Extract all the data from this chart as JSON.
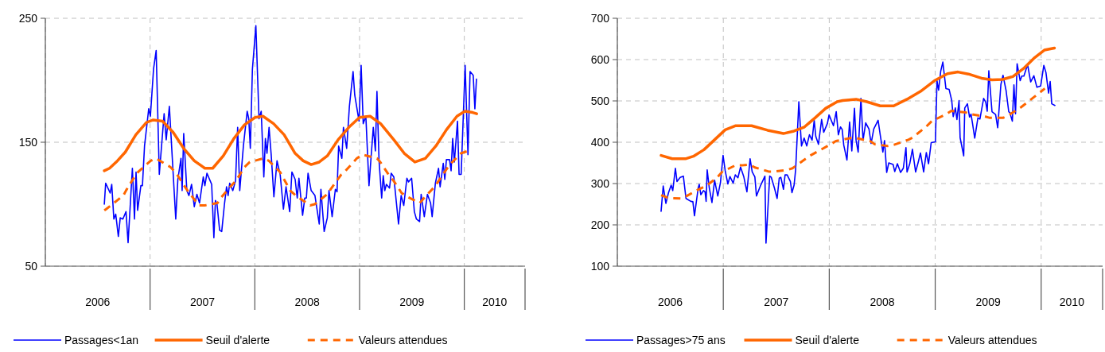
{
  "chart_data": [
    {
      "type": "line",
      "xlim": [
        2006,
        2010.58
      ],
      "ylim": [
        50,
        250
      ],
      "yticks": [
        50,
        150,
        250
      ],
      "xticks": [
        {
          "value": 2006,
          "label": null
        },
        {
          "value": 2006.5,
          "label": "2006"
        },
        {
          "value": 2007,
          "label": null
        },
        {
          "value": 2007.5,
          "label": "2007"
        },
        {
          "value": 2008,
          "label": null
        },
        {
          "value": 2008.5,
          "label": "2008"
        },
        {
          "value": 2009,
          "label": null
        },
        {
          "value": 2009.5,
          "label": "2009"
        },
        {
          "value": 2010,
          "label": null
        },
        {
          "value": 2010.29,
          "label": "2010"
        }
      ],
      "grid": true,
      "legend": "bottom",
      "series": [
        {
          "name": "Passages<1an",
          "color": "#0000ff",
          "line_style": "solid",
          "x": [
            2006.563,
            2006.576,
            2006.619,
            2006.634,
            2006.654,
            2006.672,
            2006.697,
            2006.715,
            2006.74,
            2006.77,
            2006.79,
            2006.831,
            2006.851,
            2006.866,
            2006.881,
            2006.912,
            2006.927,
            2006.947,
            2006.987,
            2007.003,
            2007.033,
            2007.058,
            2007.088,
            2007.134,
            2007.154,
            2007.184,
            2007.245,
            2007.265,
            2007.295,
            2007.306,
            2007.321,
            2007.351,
            2007.371,
            2007.396,
            2007.422,
            2007.447,
            2007.472,
            2007.508,
            2007.523,
            2007.543,
            2007.573,
            2007.588,
            2007.609,
            2007.624,
            2007.639,
            2007.664,
            2007.684,
            2007.71,
            2007.73,
            2007.745,
            2007.76,
            2007.79,
            2007.816,
            2007.836,
            2007.856,
            2007.891,
            2007.927,
            2007.942,
            2007.957,
            2007.977,
            2008.01,
            2008.04,
            2008.061,
            2008.086,
            2008.101,
            2008.116,
            2008.136,
            2008.157,
            2008.182,
            2008.212,
            2008.242,
            2008.273,
            2008.298,
            2008.333,
            2008.354,
            2008.385,
            2008.405,
            2008.421,
            2008.456,
            2008.477,
            2008.492,
            2008.508,
            2008.538,
            2008.574,
            2008.615,
            2008.631,
            2008.662,
            2008.692,
            2008.708,
            2008.738,
            2008.769,
            2008.785,
            2008.8,
            2008.831,
            2008.846,
            2008.877,
            2008.903,
            2008.938,
            2008.954,
            2008.995,
            2009.015,
            2009.035,
            2009.06,
            2009.09,
            2009.131,
            2009.151,
            2009.166,
            2009.186,
            2009.211,
            2009.226,
            2009.241,
            2009.256,
            2009.286,
            2009.302,
            2009.327,
            2009.372,
            2009.397,
            2009.422,
            2009.452,
            2009.467,
            2009.497,
            2009.523,
            2009.543,
            2009.573,
            2009.588,
            2009.618,
            2009.648,
            2009.678,
            2009.693,
            2009.724,
            2009.754,
            2009.769,
            2009.799,
            2009.814,
            2009.829,
            2009.859,
            2009.874,
            2009.889,
            2009.905,
            2009.935,
            2009.95,
            2009.97,
            2010.008,
            2010.035,
            2010.055,
            2010.085,
            2010.101,
            2010.116
          ],
          "values": [
            100,
            117,
            109,
            116,
            88,
            92,
            74,
            89,
            88,
            94,
            69,
            129,
            88,
            126,
            95,
            115,
            115,
            147,
            177,
            171,
            209,
            224,
            124,
            173,
            152,
            179,
            88,
            120,
            137,
            111,
            157,
            111,
            107,
            116,
            98,
            108,
            101,
            122,
            115,
            125,
            119,
            116,
            73,
            103,
            100,
            79,
            78,
            100,
            114,
            107,
            117,
            111,
            119,
            162,
            111,
            147,
            175,
            169,
            145,
            209,
            244,
            169,
            175,
            122,
            153,
            141,
            162,
            139,
            106,
            135,
            124,
            96,
            114,
            94,
            126,
            120,
            105,
            121,
            91,
            105,
            105,
            125,
            111,
            107,
            84,
            112,
            78,
            89,
            111,
            90,
            112,
            110,
            147,
            137,
            162,
            145,
            179,
            207,
            188,
            167,
            212,
            165,
            171,
            115,
            162,
            143,
            191,
            135,
            105,
            123,
            111,
            116,
            113,
            125,
            122,
            84,
            107,
            99,
            121,
            118,
            121,
            94,
            88,
            86,
            108,
            90,
            108,
            101,
            90,
            117,
            129,
            114,
            133,
            120,
            136,
            136,
            127,
            153,
            134,
            167,
            124,
            124,
            212,
            140,
            207,
            204,
            177,
            201
          ]
        },
        {
          "name": "Seuil d'alerte",
          "color": "#ff6600",
          "line_style": "solid",
          "x": [
            2006.563,
            2006.613,
            2006.688,
            2006.763,
            2006.864,
            2006.965,
            2007.03,
            2007.119,
            2007.22,
            2007.321,
            2007.422,
            2007.523,
            2007.598,
            2007.699,
            2007.8,
            2007.901,
            2008.003,
            2008.078,
            2008.179,
            2008.28,
            2008.385,
            2008.462,
            2008.538,
            2008.615,
            2008.692,
            2008.795,
            2008.897,
            2009.0,
            2009.101,
            2009.201,
            2009.327,
            2009.427,
            2009.528,
            2009.628,
            2009.729,
            2009.829,
            2009.93,
            2010.005,
            2010.08,
            2010.118
          ],
          "values": [
            127,
            129,
            135,
            142,
            156,
            166,
            168,
            167,
            158,
            145,
            135,
            129,
            129,
            139,
            153,
            164,
            170,
            171,
            165,
            156,
            141,
            135,
            132,
            134,
            139,
            152,
            162,
            170,
            171,
            165,
            152,
            141,
            134,
            137,
            147,
            160,
            171,
            175,
            174,
            173
          ]
        },
        {
          "name": "Valeurs attendues",
          "color": "#ff6600",
          "line_style": "dashed",
          "x": [
            2006.563,
            2006.58,
            2006.745,
            2006.77,
            2006.843,
            2006.886,
            2007.005,
            2007.055,
            2007.194,
            2007.25,
            2007.333,
            2007.366,
            2007.467,
            2007.523,
            2007.644,
            2007.674,
            2007.775,
            2007.821,
            2007.902,
            2007.952,
            2008.083,
            2008.134,
            2008.241,
            2008.273,
            2008.338,
            2008.392,
            2008.528,
            2008.572,
            2008.705,
            2008.723,
            2008.826,
            2008.867,
            2008.974,
            2009.03,
            2009.166,
            2009.198,
            2009.284,
            2009.324,
            2009.402,
            2009.457,
            2009.575,
            2009.615,
            2009.726,
            2009.756,
            2009.837,
            2009.874,
            2009.967,
            2010.035
          ],
          "values": [
            95,
            96,
            107,
            111,
            121,
            126,
            135,
            137,
            130,
            125,
            114,
            110,
            99,
            99,
            101,
            105,
            115,
            119,
            130,
            134,
            137,
            135,
            126,
            121,
            111,
            107,
            99,
            100,
            109,
            112,
            124,
            127,
            137,
            140,
            137,
            134,
            123,
            119,
            109,
            106,
            101,
            105,
            115,
            119,
            129,
            133,
            141,
            143
          ]
        }
      ]
    },
    {
      "type": "line",
      "xlim": [
        2006,
        2010.58
      ],
      "ylim": [
        100,
        700
      ],
      "yticks": [
        100,
        200,
        300,
        400,
        500,
        600,
        700
      ],
      "xticks": [
        {
          "value": 2006,
          "label": null
        },
        {
          "value": 2006.5,
          "label": "2006"
        },
        {
          "value": 2007,
          "label": null
        },
        {
          "value": 2007.5,
          "label": "2007"
        },
        {
          "value": 2008,
          "label": null
        },
        {
          "value": 2008.5,
          "label": "2008"
        },
        {
          "value": 2009,
          "label": null
        },
        {
          "value": 2009.5,
          "label": "2009"
        },
        {
          "value": 2010,
          "label": null
        },
        {
          "value": 2010.29,
          "label": "2010"
        }
      ],
      "grid": true,
      "legend": "bottom",
      "series": [
        {
          "name": "Passages>75 ans",
          "color": "#0000ff",
          "line_style": "solid",
          "x": [
            2006.413,
            2006.433,
            2006.458,
            2006.483,
            2006.508,
            2006.523,
            2006.548,
            2006.563,
            2006.593,
            2006.623,
            2006.648,
            2006.693,
            2006.713,
            2006.728,
            2006.763,
            2006.773,
            2006.788,
            2006.813,
            2006.828,
            2006.838,
            2006.848,
            2006.868,
            2006.893,
            2006.918,
            2006.928,
            2006.948,
            2006.973,
            2006.998,
            2007.018,
            2007.043,
            2007.063,
            2007.093,
            2007.113,
            2007.138,
            2007.163,
            2007.193,
            2007.223,
            2007.253,
            2007.273,
            2007.298,
            2007.313,
            2007.353,
            2007.393,
            2007.403,
            2007.438,
            2007.453,
            2007.483,
            2007.508,
            2007.528,
            2007.543,
            2007.568,
            2007.583,
            2007.603,
            2007.633,
            2007.648,
            2007.668,
            2007.683,
            2007.713,
            2007.738,
            2007.763,
            2007.788,
            2007.813,
            2007.838,
            2007.858,
            2007.873,
            2007.898,
            2007.928,
            2007.948,
            2007.983,
            2007.998,
            2008.04,
            2008.066,
            2008.086,
            2008.106,
            2008.122,
            2008.137,
            2008.167,
            2008.192,
            2008.213,
            2008.238,
            2008.253,
            2008.273,
            2008.299,
            2008.319,
            2008.344,
            2008.375,
            2008.395,
            2008.42,
            2008.461,
            2008.481,
            2008.506,
            2008.522,
            2008.542,
            2008.562,
            2008.603,
            2008.618,
            2008.643,
            2008.673,
            2008.699,
            2008.724,
            2008.734,
            2008.759,
            2008.785,
            2008.815,
            2008.841,
            2008.861,
            2008.891,
            2008.916,
            2008.937,
            2008.962,
            2009.002,
            2009.017,
            2009.032,
            2009.052,
            2009.072,
            2009.101,
            2009.131,
            2009.156,
            2009.17,
            2009.19,
            2009.205,
            2009.225,
            2009.235,
            2009.269,
            2009.279,
            2009.304,
            2009.324,
            2009.338,
            2009.353,
            2009.373,
            2009.403,
            2009.422,
            2009.457,
            2009.477,
            2009.491,
            2009.506,
            2009.536,
            2009.57,
            2009.59,
            2009.62,
            2009.64,
            2009.669,
            2009.694,
            2009.704,
            2009.728,
            2009.743,
            2009.758,
            2009.773,
            2009.802,
            2009.817,
            2009.837,
            2009.872,
            2009.901,
            2009.931,
            2009.96,
            2009.995,
            2010.025,
            2010.045,
            2010.07,
            2010.085,
            2010.1,
            2010.13
          ],
          "values": [
            233,
            294,
            252,
            278,
            296,
            283,
            337,
            305,
            315,
            318,
            264,
            257,
            256,
            222,
            289,
            298,
            273,
            283,
            280,
            257,
            333,
            289,
            254,
            308,
            295,
            270,
            302,
            368,
            331,
            299,
            317,
            301,
            321,
            314,
            340,
            317,
            280,
            360,
            328,
            316,
            270,
            296,
            318,
            156,
            318,
            315,
            289,
            264,
            313,
            315,
            286,
            321,
            321,
            305,
            278,
            296,
            334,
            498,
            391,
            410,
            391,
            418,
            405,
            453,
            414,
            395,
            455,
            424,
            446,
            466,
            440,
            474,
            418,
            437,
            431,
            393,
            357,
            449,
            379,
            482,
            405,
            376,
            506,
            405,
            447,
            432,
            397,
            432,
            453,
            418,
            376,
            404,
            327,
            350,
            346,
            329,
            348,
            327,
            337,
            387,
            328,
            347,
            383,
            328,
            353,
            374,
            328,
            375,
            348,
            399,
            401,
            549,
            526,
            572,
            594,
            530,
            528,
            501,
            462,
            483,
            455,
            501,
            411,
            367,
            483,
            493,
            461,
            468,
            444,
            410,
            459,
            456,
            506,
            497,
            475,
            573,
            474,
            467,
            435,
            540,
            562,
            525,
            474,
            472,
            451,
            539,
            469,
            590,
            549,
            560,
            560,
            588,
            546,
            561,
            533,
            536,
            586,
            569,
            519,
            547,
            493,
            489
          ]
        },
        {
          "name": "Seuil d'alerte",
          "color": "#ff6600",
          "line_style": "solid",
          "x": [
            2006.413,
            2006.518,
            2006.643,
            2006.718,
            2006.818,
            2006.918,
            2007.018,
            2007.118,
            2007.267,
            2007.418,
            2007.567,
            2007.667,
            2007.766,
            2007.866,
            2007.966,
            2008.075,
            2008.127,
            2008.253,
            2008.354,
            2008.481,
            2008.608,
            2008.734,
            2008.861,
            2008.993,
            2009.116,
            2009.215,
            2009.314,
            2009.437,
            2009.536,
            2009.635,
            2009.733,
            2009.832,
            2009.931,
            2010.03,
            2010.125
          ],
          "values": [
            368,
            360,
            360,
            366,
            382,
            406,
            430,
            440,
            440,
            429,
            421,
            427,
            437,
            459,
            482,
            498,
            501,
            504,
            498,
            488,
            488,
            504,
            523,
            549,
            566,
            570,
            565,
            555,
            551,
            552,
            559,
            578,
            603,
            623,
            628
          ]
        },
        {
          "name": "Valeurs attendues",
          "color": "#ff6600",
          "line_style": "dashed",
          "x": [
            2006.413,
            2006.48,
            2006.598,
            2006.655,
            2006.768,
            2006.838,
            2006.943,
            2006.988,
            2007.113,
            2007.173,
            2007.248,
            2007.298,
            2007.428,
            2007.478,
            2007.603,
            2007.653,
            2007.773,
            2007.823,
            2008.013,
            2008.063,
            2008.203,
            2008.253,
            2008.392,
            2008.43,
            2008.552,
            2008.613,
            2008.747,
            2008.785,
            2008.916,
            2008.967,
            2009.104,
            2009.153,
            2009.289,
            2009.333,
            2009.474,
            2009.516,
            2009.64,
            2009.684,
            2009.812,
            2009.862,
            2009.985,
            2010.035
          ],
          "values": [
            272,
            265,
            264,
            270,
            286,
            294,
            315,
            328,
            344,
            344,
            346,
            339,
            329,
            329,
            333,
            337,
            359,
            368,
            395,
            403,
            410,
            410,
            402,
            395,
            391,
            394,
            406,
            411,
            438,
            451,
            468,
            476,
            472,
            468,
            462,
            459,
            459,
            464,
            485,
            495,
            520,
            530
          ]
        }
      ]
    }
  ]
}
